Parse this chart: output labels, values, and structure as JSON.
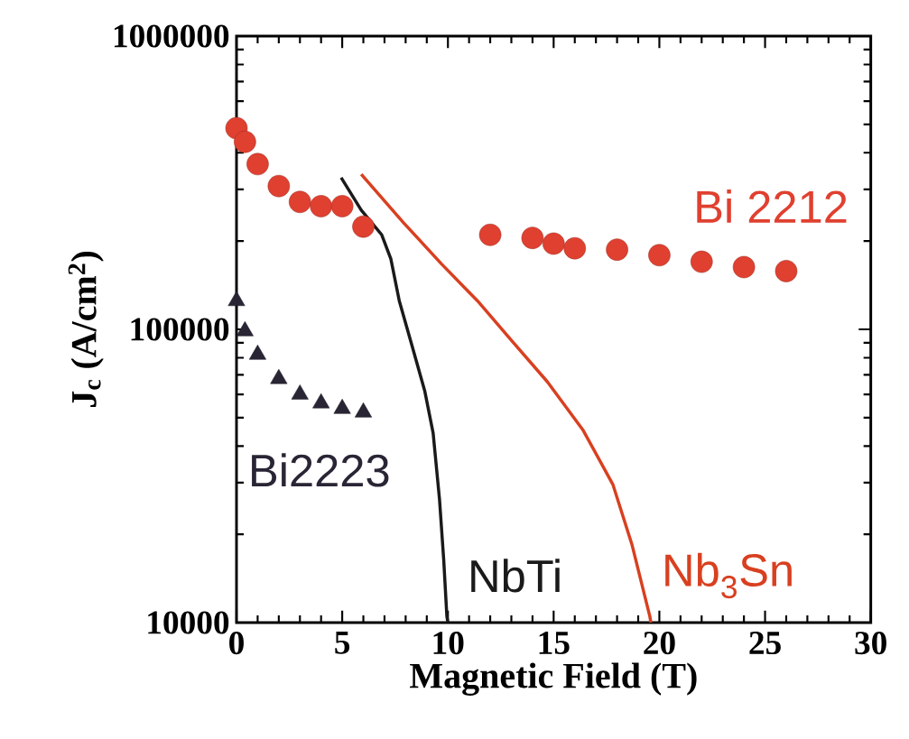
{
  "chart_data": {
    "type": "scatter",
    "xlabel": "Magnetic Field (T)",
    "ylabel": "J$_{c}$ (A/cm$^{2}$)",
    "log": "y",
    "xlim": [
      0,
      30
    ],
    "xticks": [
      0,
      5,
      10,
      15,
      20,
      25,
      30
    ],
    "ylim": [
      10000,
      1000000
    ],
    "yticks": [
      10000,
      100000,
      1000000
    ],
    "series": [
      {
        "name": "Bi 2212",
        "marker": "circle",
        "color": "#e04030",
        "x": [
          0,
          0.4,
          1,
          2,
          3,
          4,
          5,
          6,
          12,
          14,
          15,
          16,
          18,
          20,
          22,
          24,
          26
        ],
        "values": [
          485000,
          436000,
          366000,
          308000,
          272000,
          263000,
          263000,
          224000,
          210000,
          205000,
          196000,
          189000,
          187000,
          179000,
          170000,
          163000,
          158000
        ]
      },
      {
        "name": "Bi2223",
        "marker": "triangle",
        "color": "#2a2535",
        "x": [
          0,
          0.4,
          1,
          2,
          3,
          4,
          5,
          6
        ],
        "values": [
          125000,
          98600,
          82000,
          67800,
          60000,
          56000,
          53600,
          52100
        ]
      },
      {
        "name": "NbTi",
        "type": "line",
        "line_style": "solid",
        "color": "#1a1a1a",
        "x": [
          4.95,
          5.9,
          6.87,
          7.3,
          7.7,
          8.3,
          8.9,
          9.3,
          9.6,
          9.8,
          9.95,
          10
        ],
        "values": [
          329000,
          255000,
          210000,
          174000,
          125000,
          88000,
          61800,
          44300,
          26400,
          16400,
          10500,
          10000
        ]
      },
      {
        "name": "Nb$_{3}$Sn",
        "type": "line",
        "line_style": "solid",
        "color": "#d84020",
        "x": [
          5.9,
          7.9,
          9.7,
          11.4,
          13.0,
          14.7,
          16.4,
          17.8,
          18.7,
          19.55,
          19.6
        ],
        "values": [
          338000,
          231000,
          167000,
          125000,
          91800,
          66300,
          45200,
          29600,
          18500,
          10500,
          10000
        ]
      }
    ]
  }
}
